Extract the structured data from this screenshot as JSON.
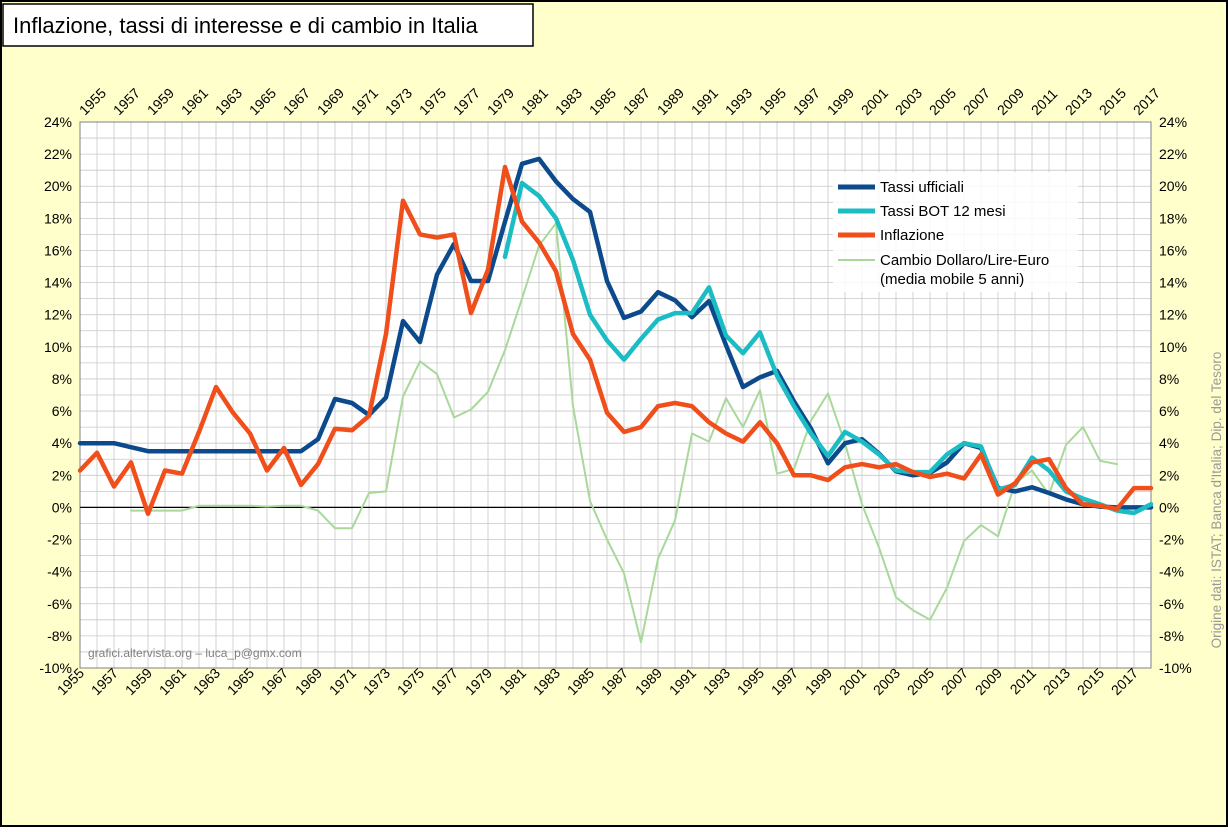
{
  "chart_data": {
    "type": "line",
    "title": "Inflazione, tassi di interesse e di cambio in Italia",
    "years_start": 1955,
    "years_end": 2018,
    "tick_years": [
      "1955",
      "1957",
      "1959",
      "1961",
      "1963",
      "1965",
      "1967",
      "1969",
      "1971",
      "1973",
      "1975",
      "1977",
      "1979",
      "1981",
      "1983",
      "1985",
      "1987",
      "1989",
      "1991",
      "1993",
      "1995",
      "1997",
      "1999",
      "2001",
      "2003",
      "2005",
      "2007",
      "2009",
      "2011",
      "2013",
      "2015",
      "2017"
    ],
    "ylim": [
      -10,
      24
    ],
    "y_ticks": [
      "-10%",
      "-8%",
      "-6%",
      "-4%",
      "-2%",
      "0%",
      "2%",
      "4%",
      "6%",
      "8%",
      "10%",
      "12%",
      "14%",
      "16%",
      "18%",
      "20%",
      "22%",
      "24%"
    ],
    "grid": true,
    "legend_position": "top-right",
    "side_note": "Origine dati: ISTAT; Banca d'Italia; Dip. del Tesoro",
    "credit": "grafici.altervista.org – luca_p@gmx.com",
    "colors": {
      "background": "#FFFFCC",
      "plot_background": "#FFFFFF",
      "grid": "#C8C8C8",
      "tassi_ufficiali": "#0C4A8C",
      "tassi_bot": "#1BBCC4",
      "inflazione": "#F04E1A",
      "cambio": "#A8D89A"
    },
    "series": [
      {
        "key": "cambio",
        "name": "Cambio Dollaro/Lire-Euro",
        "name_line2": "(media mobile 5 anni)",
        "x": [
          1958,
          1959,
          1960,
          1961,
          1962,
          1963,
          1964,
          1965,
          1966,
          1967,
          1968,
          1969,
          1970,
          1971,
          1972,
          1973,
          1974,
          1975,
          1976,
          1977,
          1978,
          1979,
          1980,
          1981,
          1982,
          1983,
          1984,
          1985,
          1986,
          1987,
          1988,
          1989,
          1990,
          1991,
          1992,
          1993,
          1994,
          1995,
          1996,
          1997,
          1998,
          1999,
          2000,
          2001,
          2002,
          2003,
          2004,
          2005,
          2006,
          2007,
          2008,
          2009,
          2010,
          2011,
          2012,
          2013,
          2014,
          2015,
          2016
        ],
        "values": [
          -0.2,
          -0.2,
          -0.2,
          -0.2,
          0.1,
          0.1,
          0.1,
          0.1,
          0.05,
          0.1,
          0.1,
          -0.2,
          -1.3,
          -1.3,
          0.9,
          1.0,
          6.9,
          9.1,
          8.3,
          5.6,
          6.1,
          7.2,
          9.8,
          13.0,
          16.3,
          17.7,
          6.3,
          0.4,
          -2.0,
          -4.1,
          -8.4,
          -3.2,
          -0.8,
          4.6,
          4.1,
          6.8,
          5.0,
          7.3,
          2.1,
          2.4,
          5.4,
          7.1,
          4.0,
          0.2,
          -2.5,
          -5.6,
          -6.4,
          -7.0,
          -5.0,
          -2.1,
          -1.1,
          -1.8,
          1.5,
          2.3,
          0.8,
          3.9,
          5.0,
          2.9,
          2.7
        ]
      },
      {
        "key": "tassi_ufficiali",
        "name": "Tassi ufficiali",
        "x": [
          1955,
          1956,
          1957,
          1958,
          1959,
          1960,
          1961,
          1962,
          1963,
          1964,
          1965,
          1966,
          1967,
          1968,
          1969,
          1970,
          1971,
          1972,
          1973,
          1974,
          1975,
          1976,
          1977,
          1978,
          1979,
          1980,
          1981,
          1982,
          1983,
          1984,
          1985,
          1986,
          1987,
          1988,
          1989,
          1990,
          1991,
          1992,
          1993,
          1994,
          1995,
          1996,
          1997,
          1998,
          1999,
          2000,
          2001,
          2002,
          2003,
          2004,
          2005,
          2006,
          2007,
          2008,
          2009,
          2010,
          2011,
          2012,
          2013,
          2014,
          2015,
          2016,
          2017,
          2018
        ],
        "values": [
          4.0,
          4.0,
          4.0,
          3.75,
          3.5,
          3.5,
          3.5,
          3.5,
          3.5,
          3.5,
          3.5,
          3.5,
          3.5,
          3.5,
          4.25,
          6.75,
          6.5,
          5.75,
          6.85,
          11.6,
          10.3,
          14.5,
          16.4,
          14.1,
          14.1,
          17.8,
          21.4,
          21.7,
          20.3,
          19.2,
          18.4,
          14.1,
          11.8,
          12.2,
          13.4,
          12.9,
          11.85,
          12.85,
          10.1,
          7.5,
          8.1,
          8.5,
          6.6,
          4.9,
          2.75,
          4.0,
          4.25,
          3.35,
          2.25,
          2.0,
          2.15,
          2.8,
          4.0,
          3.7,
          1.2,
          1.0,
          1.25,
          0.9,
          0.5,
          0.2,
          0.05,
          0.0,
          0.0,
          0.0
        ]
      },
      {
        "key": "tassi_bot",
        "name": "Tassi BOT 12 mesi",
        "x": [
          1980,
          1981,
          1982,
          1983,
          1984,
          1985,
          1986,
          1987,
          1988,
          1989,
          1990,
          1991,
          1992,
          1993,
          1994,
          1995,
          1996,
          1997,
          1998,
          1999,
          2000,
          2001,
          2002,
          2003,
          2004,
          2005,
          2006,
          2007,
          2008,
          2009,
          2010,
          2011,
          2012,
          2013,
          2014,
          2015,
          2016,
          2017,
          2018
        ],
        "values": [
          15.6,
          20.2,
          19.4,
          18.0,
          15.4,
          12.0,
          10.4,
          9.2,
          10.5,
          11.7,
          12.1,
          12.1,
          13.7,
          10.7,
          9.6,
          10.9,
          8.2,
          6.3,
          4.6,
          3.2,
          4.7,
          4.1,
          3.3,
          2.3,
          2.2,
          2.2,
          3.3,
          4.0,
          3.8,
          1.1,
          1.4,
          3.1,
          2.3,
          1.0,
          0.55,
          0.2,
          -0.2,
          -0.35,
          0.2
        ]
      },
      {
        "key": "inflazione",
        "name": "Inflazione",
        "x": [
          1955,
          1956,
          1957,
          1958,
          1959,
          1960,
          1961,
          1962,
          1963,
          1964,
          1965,
          1966,
          1967,
          1968,
          1969,
          1970,
          1971,
          1972,
          1973,
          1974,
          1975,
          1976,
          1977,
          1978,
          1979,
          1980,
          1981,
          1982,
          1983,
          1984,
          1985,
          1986,
          1987,
          1988,
          1989,
          1990,
          1991,
          1992,
          1993,
          1994,
          1995,
          1996,
          1997,
          1998,
          1999,
          2000,
          2001,
          2002,
          2003,
          2004,
          2005,
          2006,
          2007,
          2008,
          2009,
          2010,
          2011,
          2012,
          2013,
          2014,
          2015,
          2016,
          2017,
          2018
        ],
        "values": [
          2.3,
          3.4,
          1.3,
          2.8,
          -0.4,
          2.3,
          2.1,
          4.7,
          7.5,
          5.9,
          4.6,
          2.3,
          3.7,
          1.4,
          2.7,
          4.9,
          4.8,
          5.7,
          10.8,
          19.1,
          17.0,
          16.8,
          17.0,
          12.1,
          14.8,
          21.2,
          17.8,
          16.5,
          14.7,
          10.8,
          9.2,
          5.9,
          4.7,
          5.0,
          6.3,
          6.5,
          6.3,
          5.3,
          4.6,
          4.1,
          5.3,
          4.0,
          2.0,
          2.0,
          1.7,
          2.5,
          2.7,
          2.5,
          2.7,
          2.2,
          1.9,
          2.1,
          1.8,
          3.3,
          0.8,
          1.5,
          2.8,
          3.0,
          1.2,
          0.2,
          0.1,
          -0.1,
          1.2,
          1.2
        ]
      }
    ]
  }
}
